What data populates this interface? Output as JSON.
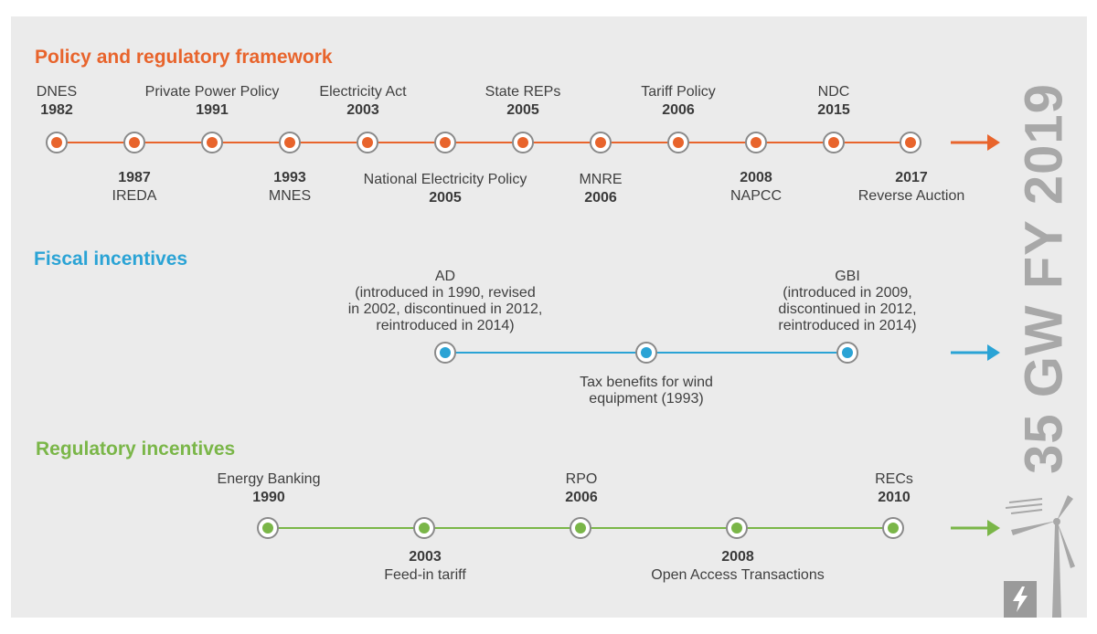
{
  "colors": {
    "policy": "#e8642c",
    "fiscal": "#2aa3d5",
    "regulatory": "#7ab648",
    "node_ring": "#8a8a8a",
    "side_title": "#a8a8a8"
  },
  "sections": {
    "policy": {
      "title": "Policy and regulatory framework"
    },
    "fiscal": {
      "title": "Fiscal incentives"
    },
    "regulatory": {
      "title": "Regulatory incentives"
    }
  },
  "policy_events": [
    {
      "name": "DNES",
      "year": "1982",
      "side": "above"
    },
    {
      "name": "IREDA",
      "year": "1987",
      "side": "below"
    },
    {
      "name": "Private Power Policy",
      "year": "1991",
      "side": "above"
    },
    {
      "name": "MNES",
      "year": "1993",
      "side": "below"
    },
    {
      "name": "Electricity Act",
      "year": "2003",
      "side": "above"
    },
    {
      "name": "National Electricity Policy",
      "year": "2005",
      "side": "below"
    },
    {
      "name": "State REPs",
      "year": "2005",
      "side": "above"
    },
    {
      "name": "MNRE",
      "year": "2006",
      "side": "below"
    },
    {
      "name": "Tariff Policy",
      "year": "2006",
      "side": "above"
    },
    {
      "name": "NAPCC",
      "year": "2008",
      "side": "below"
    },
    {
      "name": "NDC",
      "year": "2015",
      "side": "above"
    },
    {
      "name": "Reverse Auction",
      "year": "2017",
      "side": "below"
    }
  ],
  "fiscal_events": [
    {
      "lines": [
        "AD",
        "(introduced in 1990, revised",
        "in 2002, discontinued in 2012,",
        "reintroduced in 2014)"
      ],
      "side": "above"
    },
    {
      "lines": [
        "Tax benefits for wind",
        "equipment (1993)"
      ],
      "side": "below"
    },
    {
      "lines": [
        "GBI",
        "(introduced in 2009,",
        "discontinued in 2012,",
        "reintroduced in 2014)"
      ],
      "side": "above"
    }
  ],
  "regulatory_events": [
    {
      "name": "Energy Banking",
      "year": "1990",
      "side": "above"
    },
    {
      "name": "Feed-in tariff",
      "year": "2003",
      "side": "below"
    },
    {
      "name": "RPO",
      "year": "2006",
      "side": "above"
    },
    {
      "name": "Open Access Transactions",
      "year": "2008",
      "side": "below"
    },
    {
      "name": "RECs",
      "year": "2010",
      "side": "above"
    }
  ],
  "side_title": "35 GW FY 2019",
  "icons": {
    "wind_turbine": "wind-turbine-icon",
    "power_box": "power-lightning-icon"
  }
}
